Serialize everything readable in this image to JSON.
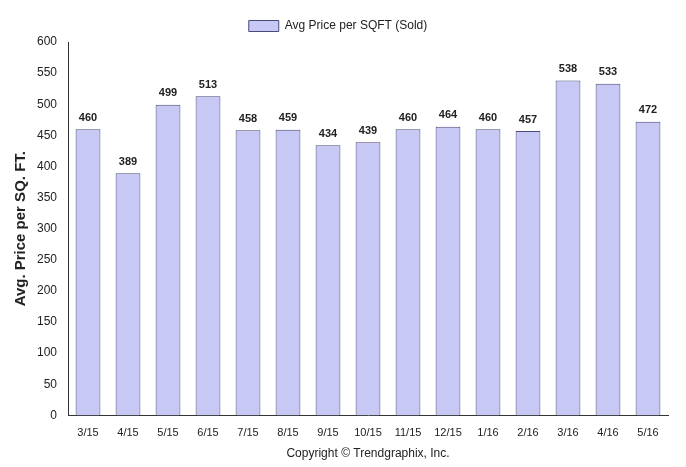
{
  "chart_data": {
    "type": "bar",
    "xlabel": "Copyright © Trendgraphix, Inc.",
    "ylabel": "Avg. Price per SQ. FT.",
    "categories": [
      "3/15",
      "4/15",
      "5/15",
      "6/15",
      "7/15",
      "8/15",
      "9/15",
      "10/15",
      "11/15",
      "12/15",
      "1/16",
      "2/16",
      "3/16",
      "4/16",
      "5/16"
    ],
    "series": [
      {
        "name": "Avg Price per SQFT (Sold)",
        "color": "#c8c8f4",
        "values": [
          460,
          389,
          499,
          513,
          458,
          459,
          434,
          439,
          460,
          464,
          460,
          457,
          538,
          533,
          472
        ]
      }
    ],
    "ylim": [
      0,
      600
    ],
    "yticks": [
      0,
      50,
      100,
      150,
      200,
      250,
      300,
      350,
      400,
      450,
      500,
      550,
      600
    ],
    "grid": false,
    "legend": "top",
    "data_labels": true
  }
}
